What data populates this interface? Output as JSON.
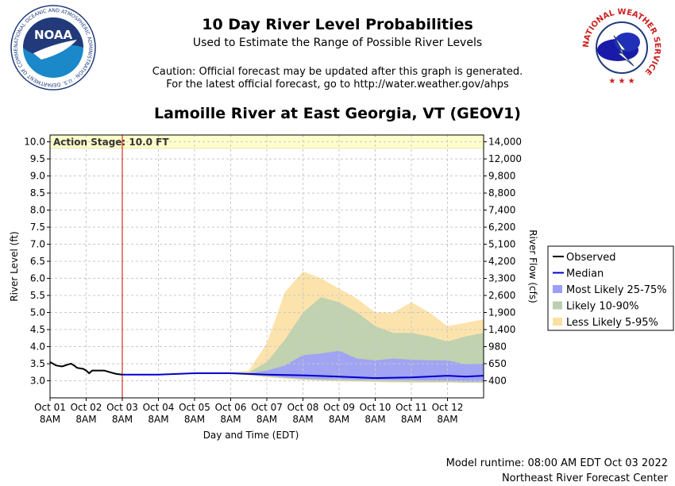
{
  "header": {
    "title": "10 Day River Level Probabilities",
    "subtitle": "Used to Estimate the Range of Possible River Levels",
    "caution_line1": "Caution: Official forecast may be updated after this graph is generated.",
    "caution_line2": "For the latest official forecast, go to http://water.weather.gov/ahps",
    "station": "Lamoille River at East Georgia, VT (GEOV1)"
  },
  "logos": {
    "noaa_text": "NOAA",
    "noaa_ring_text": "NATIONAL OCEANIC AND ATMOSPHERIC ADMINISTRATION · U.S. DEPARTMENT OF COMMERCE",
    "nws_ring_text": "NATIONAL WEATHER SERVICE"
  },
  "footer": {
    "runtime": "Model runtime: 08:00 AM EDT Oct 03 2022",
    "center": "Northeast River Forecast Center"
  },
  "colors": {
    "observed": "#000000",
    "median": "#0000cc",
    "band_25_75": "#9d9dfb",
    "band_10_90": "#b9cfb0",
    "band_5_95": "#fce0a3",
    "action_stage_band": "#ffffcc",
    "now_line": "#cc0000",
    "grid": "#c8c8c8"
  },
  "chart_data": {
    "type": "area",
    "title": "Lamoille River at East Georgia, VT (GEOV1)",
    "xlabel": "Day and Time (EDT)",
    "ylabel": "River Level (ft)",
    "y2label": "River Flow (cfs)",
    "ylim": [
      2.5,
      10.2
    ],
    "yticks": [
      "3.0",
      "3.5",
      "4.0",
      "4.5",
      "5.0",
      "5.5",
      "6.0",
      "6.5",
      "7.0",
      "7.5",
      "8.0",
      "8.5",
      "9.0",
      "9.5",
      "10.0"
    ],
    "y2ticks": [
      {
        "stage": 3.0,
        "label": "400"
      },
      {
        "stage": 3.5,
        "label": "650"
      },
      {
        "stage": 4.0,
        "label": "980"
      },
      {
        "stage": 4.5,
        "label": "1,400"
      },
      {
        "stage": 5.0,
        "label": "1,900"
      },
      {
        "stage": 5.5,
        "label": "2,600"
      },
      {
        "stage": 6.0,
        "label": "3,300"
      },
      {
        "stage": 6.5,
        "label": "4,200"
      },
      {
        "stage": 7.0,
        "label": "5,100"
      },
      {
        "stage": 7.5,
        "label": "6,200"
      },
      {
        "stage": 8.0,
        "label": "7,400"
      },
      {
        "stage": 8.5,
        "label": "8,800"
      },
      {
        "stage": 9.0,
        "label": "9,800"
      },
      {
        "stage": 9.5,
        "label": "12,000"
      },
      {
        "stage": 10.0,
        "label": "14,000"
      }
    ],
    "xlim": [
      "2022-10-01T08:00",
      "2022-10-13T08:00"
    ],
    "xticks": [
      {
        "t": "2022-10-01T08:00",
        "line1": "Oct 01",
        "line2": "8AM"
      },
      {
        "t": "2022-10-02T08:00",
        "line1": "Oct 02",
        "line2": "8AM"
      },
      {
        "t": "2022-10-03T08:00",
        "line1": "Oct 03",
        "line2": "8AM"
      },
      {
        "t": "2022-10-04T08:00",
        "line1": "Oct 04",
        "line2": "8AM"
      },
      {
        "t": "2022-10-05T08:00",
        "line1": "Oct 05",
        "line2": "8AM"
      },
      {
        "t": "2022-10-06T08:00",
        "line1": "Oct 06",
        "line2": "8AM"
      },
      {
        "t": "2022-10-07T08:00",
        "line1": "Oct 07",
        "line2": "8AM"
      },
      {
        "t": "2022-10-08T08:00",
        "line1": "Oct 08",
        "line2": "8AM"
      },
      {
        "t": "2022-10-09T08:00",
        "line1": "Oct 09",
        "line2": "8AM"
      },
      {
        "t": "2022-10-10T08:00",
        "line1": "Oct 10",
        "line2": "8AM"
      },
      {
        "t": "2022-10-11T08:00",
        "line1": "Oct 11",
        "line2": "8AM"
      },
      {
        "t": "2022-10-12T08:00",
        "line1": "Oct 12",
        "line2": "8AM"
      }
    ],
    "grid": true,
    "legend_position": "right",
    "action_stage": {
      "label": "Action Stage: 10.0 FT",
      "value": 10.0
    },
    "now": "2022-10-03T08:00",
    "series": [
      {
        "name": "Observed",
        "kind": "line",
        "x": [
          "2022-10-01T08:00",
          "2022-10-01T10:00",
          "2022-10-01T12:00",
          "2022-10-01T16:00",
          "2022-10-01T20:00",
          "2022-10-01T22:00",
          "2022-10-02T00:00",
          "2022-10-02T02:00",
          "2022-10-02T06:00",
          "2022-10-02T08:00",
          "2022-10-02T10:00",
          "2022-10-02T12:00",
          "2022-10-02T16:00",
          "2022-10-02T20:00",
          "2022-10-03T00:00",
          "2022-10-03T04:00",
          "2022-10-03T08:00"
        ],
        "y": [
          3.55,
          3.5,
          3.45,
          3.42,
          3.48,
          3.5,
          3.45,
          3.38,
          3.35,
          3.3,
          3.22,
          3.3,
          3.3,
          3.3,
          3.25,
          3.2,
          3.18
        ]
      },
      {
        "name": "Median",
        "kind": "line",
        "x": [
          "2022-10-03T08:00",
          "2022-10-04T08:00",
          "2022-10-05T08:00",
          "2022-10-06T08:00",
          "2022-10-07T08:00",
          "2022-10-08T08:00",
          "2022-10-09T08:00",
          "2022-10-10T08:00",
          "2022-10-11T08:00",
          "2022-10-12T08:00",
          "2022-10-12T20:00",
          "2022-10-13T08:00"
        ],
        "y": [
          3.18,
          3.18,
          3.22,
          3.22,
          3.18,
          3.16,
          3.12,
          3.08,
          3.1,
          3.15,
          3.12,
          3.15
        ]
      },
      {
        "name": "Most Likely 25-75%",
        "kind": "band",
        "x": [
          "2022-10-03T08:00",
          "2022-10-05T08:00",
          "2022-10-06T08:00",
          "2022-10-06T20:00",
          "2022-10-07T08:00",
          "2022-10-07T20:00",
          "2022-10-08T08:00",
          "2022-10-08T20:00",
          "2022-10-09T08:00",
          "2022-10-09T20:00",
          "2022-10-10T08:00",
          "2022-10-10T20:00",
          "2022-10-11T08:00",
          "2022-10-11T20:00",
          "2022-10-12T08:00",
          "2022-10-12T20:00",
          "2022-10-13T08:00"
        ],
        "low": [
          3.18,
          3.22,
          3.2,
          3.18,
          3.15,
          3.1,
          3.06,
          3.05,
          3.05,
          3.03,
          3.03,
          3.02,
          3.02,
          3.0,
          3.0,
          2.98,
          2.98
        ],
        "high": [
          3.18,
          3.22,
          3.22,
          3.22,
          3.3,
          3.45,
          3.75,
          3.8,
          3.88,
          3.65,
          3.6,
          3.65,
          3.62,
          3.6,
          3.6,
          3.48,
          3.5
        ]
      },
      {
        "name": "Likely 10-90%",
        "kind": "band",
        "x": [
          "2022-10-03T08:00",
          "2022-10-05T08:00",
          "2022-10-06T08:00",
          "2022-10-06T20:00",
          "2022-10-07T08:00",
          "2022-10-07T20:00",
          "2022-10-08T08:00",
          "2022-10-08T20:00",
          "2022-10-09T08:00",
          "2022-10-09T20:00",
          "2022-10-10T08:00",
          "2022-10-10T20:00",
          "2022-10-11T08:00",
          "2022-10-11T20:00",
          "2022-10-12T08:00",
          "2022-10-12T20:00",
          "2022-10-13T08:00"
        ],
        "low": [
          3.18,
          3.22,
          3.2,
          3.17,
          3.12,
          3.08,
          3.04,
          3.02,
          3.0,
          2.99,
          2.98,
          2.97,
          2.96,
          2.96,
          2.96,
          2.95,
          2.95
        ],
        "high": [
          3.18,
          3.22,
          3.22,
          3.25,
          3.55,
          4.2,
          5.0,
          5.45,
          5.3,
          5.0,
          4.6,
          4.4,
          4.4,
          4.3,
          4.15,
          4.3,
          4.4
        ]
      },
      {
        "name": "Less Likely 5-95%",
        "kind": "band",
        "x": [
          "2022-10-03T08:00",
          "2022-10-05T08:00",
          "2022-10-06T08:00",
          "2022-10-06T20:00",
          "2022-10-07T08:00",
          "2022-10-07T20:00",
          "2022-10-08T08:00",
          "2022-10-08T20:00",
          "2022-10-09T08:00",
          "2022-10-09T20:00",
          "2022-10-10T08:00",
          "2022-10-10T20:00",
          "2022-10-11T08:00",
          "2022-10-11T20:00",
          "2022-10-12T08:00",
          "2022-10-12T20:00",
          "2022-10-13T08:00"
        ],
        "low": [
          3.18,
          3.22,
          3.2,
          3.16,
          3.1,
          3.06,
          3.02,
          3.0,
          2.98,
          2.97,
          2.96,
          2.95,
          2.95,
          2.95,
          2.95,
          2.94,
          2.94
        ],
        "high": [
          3.18,
          3.22,
          3.25,
          3.3,
          4.1,
          5.6,
          6.2,
          6.0,
          5.7,
          5.4,
          5.0,
          5.0,
          5.3,
          5.0,
          4.6,
          4.7,
          4.8
        ]
      }
    ]
  }
}
